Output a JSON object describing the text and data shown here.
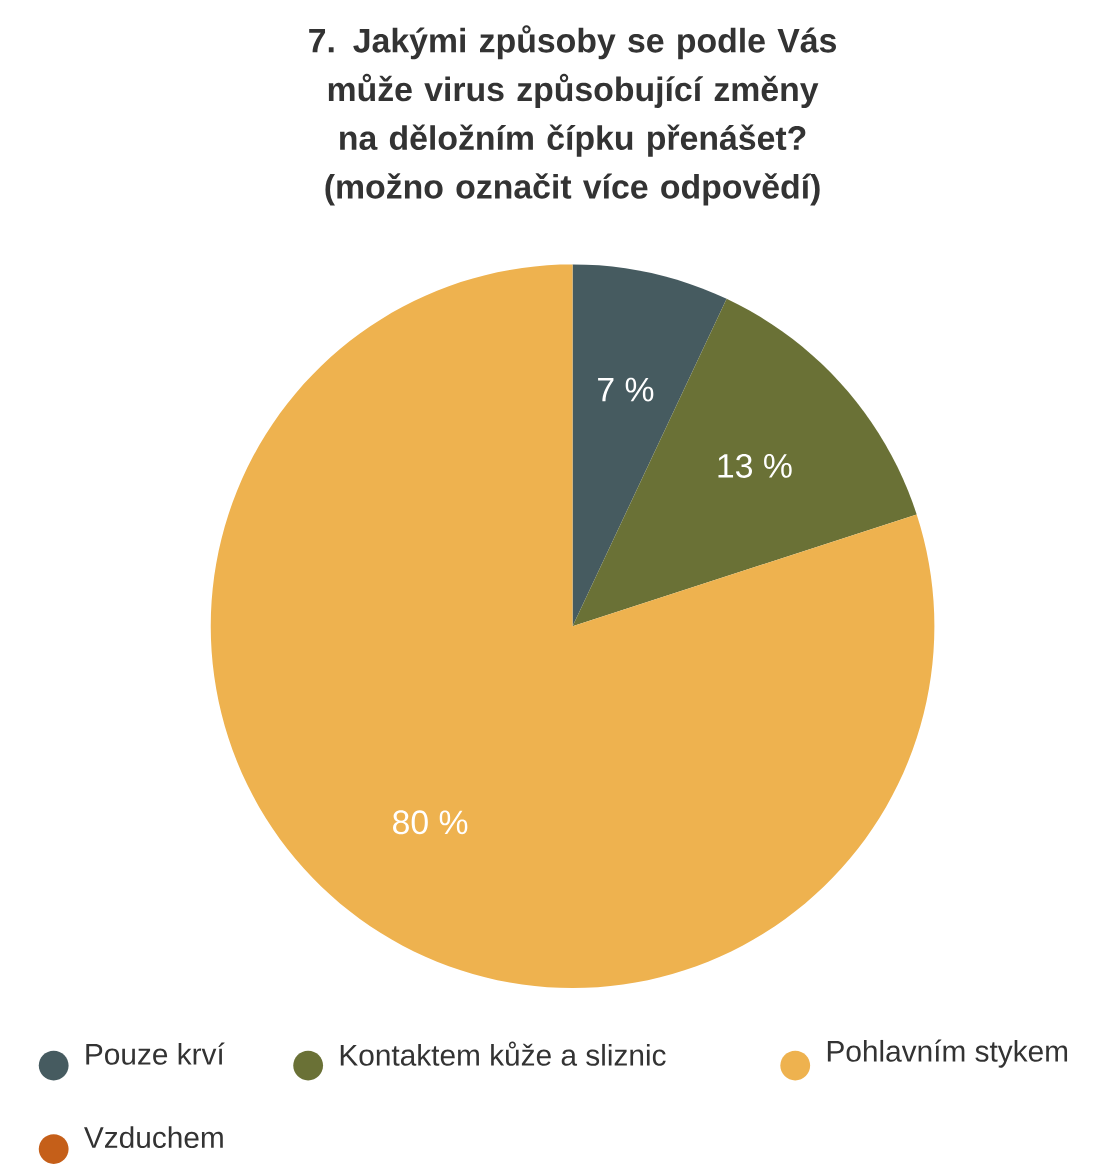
{
  "chart_data": {
    "type": "pie",
    "title": "7. Jakými způsoby se podle Vás může virus způsobující změny na děložním čípku přenášet? (možno označit více odpovědí)",
    "categories": [
      "Pouze krví",
      "Kontaktem kůže a sliznic",
      "Pohlavním stykem",
      "Vzduchem"
    ],
    "values": [
      7,
      13,
      80,
      0
    ],
    "colors": [
      "#465b60",
      "#6a7136",
      "#eeb24f",
      "#c55f19"
    ],
    "value_labels": [
      "7 %",
      "13 %",
      "80 %",
      null
    ],
    "legend": "bottom"
  }
}
